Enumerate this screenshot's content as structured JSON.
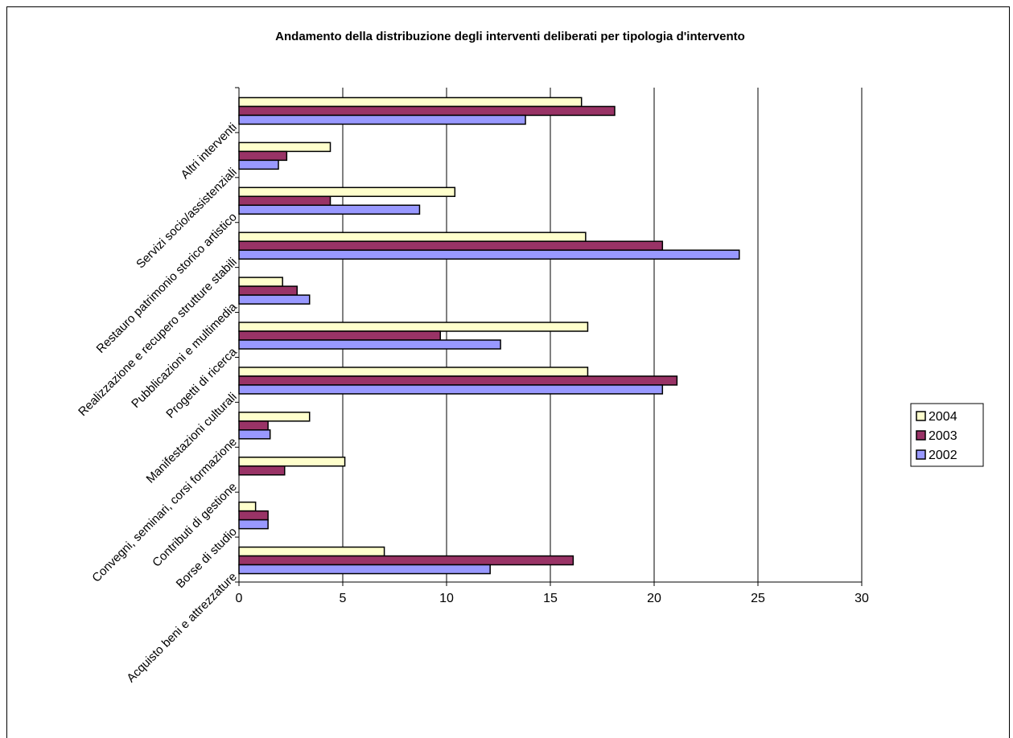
{
  "chart_data": {
    "type": "bar",
    "orientation": "horizontal",
    "title": "Andamento della distribuzione degli interventi deliberati per tipologia d'intervento",
    "categories": [
      "Acquisto beni e attrezzature",
      "Borse di studio",
      "Contributi di gestione",
      "Convegni, seminari, corsi formazione",
      "Manifestazioni culturali",
      "Progetti di ricerca",
      "Pubblicazioni e multimedia",
      "Realizzazione e recupero strutture stabili",
      "Restauro patrimonio storico artistico",
      "Servizi socio/assistenziali",
      "Altri interventi"
    ],
    "series": [
      {
        "name": "2004",
        "color": "#ffffcc",
        "values": [
          7.0,
          0.8,
          5.1,
          3.4,
          16.8,
          16.8,
          2.1,
          16.7,
          10.4,
          4.4,
          16.5
        ]
      },
      {
        "name": "2003",
        "color": "#993366",
        "values": [
          16.1,
          1.4,
          2.2,
          1.4,
          21.1,
          9.7,
          2.8,
          20.4,
          4.4,
          2.3,
          18.1
        ]
      },
      {
        "name": "2002",
        "color": "#9999ff",
        "values": [
          12.1,
          1.4,
          0,
          1.5,
          20.4,
          12.6,
          3.4,
          24.1,
          8.7,
          1.9,
          13.8
        ]
      }
    ],
    "xlim": [
      0,
      30
    ],
    "x_ticks": [
      "0",
      "5",
      "10",
      "15",
      "20",
      "25",
      "30"
    ],
    "grid": true,
    "legend_position": "right"
  }
}
